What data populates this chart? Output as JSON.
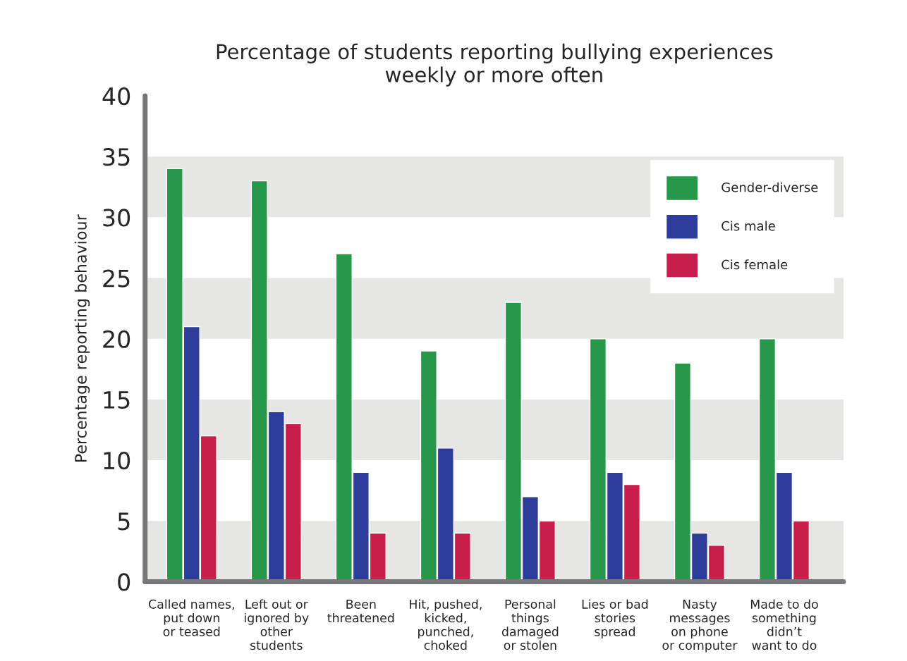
{
  "chart_data": {
    "type": "bar",
    "title": "Percentage of students reporting bullying experiences\nweekly or more often",
    "ylabel": "Percentage reporting behaviour",
    "categories": [
      "Called names,\nput down\nor teased",
      "Left out or\nignored by\nother\nstudents",
      "Been\nthreatened",
      "Hit, pushed,\nkicked,\npunched,\nchoked",
      "Personal\nthings\ndamaged\nor stolen",
      "Lies or bad\nstories\nspread",
      "Nasty\nmessages\non phone\nor computer",
      "Made to do\nsomething\ndidn’t\nwant to do"
    ],
    "series": [
      {
        "name": "Gender-diverse",
        "color": "#27984a",
        "values": [
          34,
          33,
          27,
          19,
          23,
          20,
          18,
          20
        ]
      },
      {
        "name": "Cis male",
        "color": "#2e3c9b",
        "values": [
          21,
          14,
          9,
          11,
          7,
          9,
          4,
          9
        ]
      },
      {
        "name": "Cis female",
        "color": "#c81e4c",
        "values": [
          12,
          13,
          4,
          4,
          5,
          8,
          3,
          5
        ]
      }
    ],
    "ylim": [
      0,
      40
    ],
    "yticks": [
      0,
      5,
      10,
      15,
      20,
      25,
      30,
      35,
      40
    ],
    "bands": [
      {
        "axis": "y",
        "from": 0,
        "to": 5,
        "color": "#e6e7e4"
      },
      {
        "axis": "y",
        "from": 10,
        "to": 15,
        "color": "#e6e7e4"
      },
      {
        "axis": "y",
        "from": 20,
        "to": 25,
        "color": "#e6e7e4"
      },
      {
        "axis": "y",
        "from": 30,
        "to": 35,
        "color": "#e6e7e4"
      }
    ],
    "grid": false,
    "legend": "top right"
  }
}
